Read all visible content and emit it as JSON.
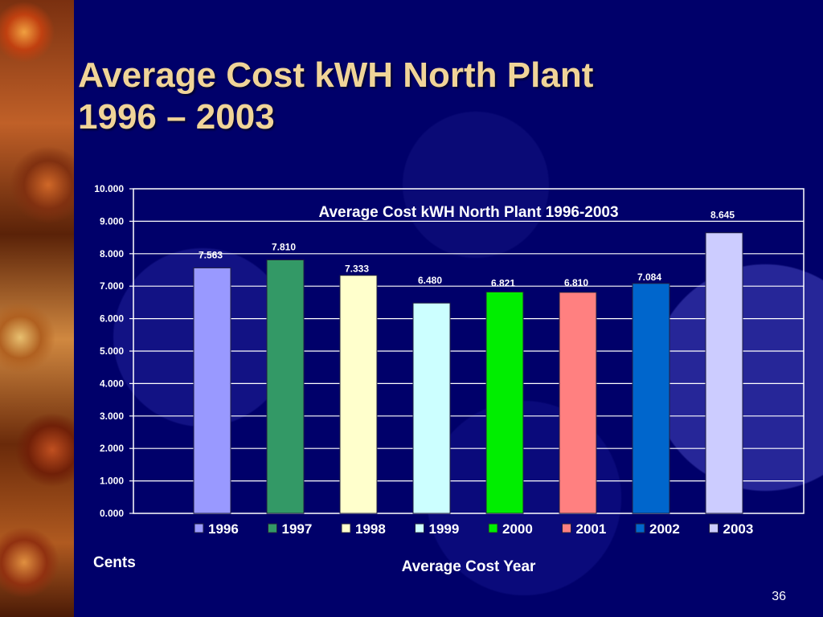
{
  "slide": {
    "title_line1": "Average Cost kWH North Plant",
    "title_line2": "1996 – 2003",
    "page_number": "36"
  },
  "colors": {
    "background": "#00006a",
    "title": "#f0d498",
    "text": "#ffffff"
  },
  "chart_data": {
    "type": "bar",
    "title": "Average Cost kWH North Plant 1996-2003",
    "xlabel": "Average Cost Year",
    "ylabel": "Cents",
    "ylim": [
      0,
      10
    ],
    "yticks": [
      "0.000",
      "1.000",
      "2.000",
      "3.000",
      "4.000",
      "5.000",
      "6.000",
      "7.000",
      "8.000",
      "9.000",
      "10.000"
    ],
    "grid": true,
    "legend_position": "bottom",
    "categories": [
      "1996",
      "1997",
      "1998",
      "1999",
      "2000",
      "2001",
      "2002",
      "2003"
    ],
    "values": [
      7.563,
      7.81,
      7.333,
      6.48,
      6.821,
      6.81,
      7.084,
      8.645
    ],
    "value_labels": [
      "7.563",
      "7.810",
      "7.333",
      "6.480",
      "6.821",
      "6.810",
      "7.084",
      "8.645"
    ],
    "colors": [
      "#9999ff",
      "#339966",
      "#ffffcc",
      "#ccffff",
      "#00ee00",
      "#ff8080",
      "#0066cc",
      "#ccccff"
    ]
  }
}
